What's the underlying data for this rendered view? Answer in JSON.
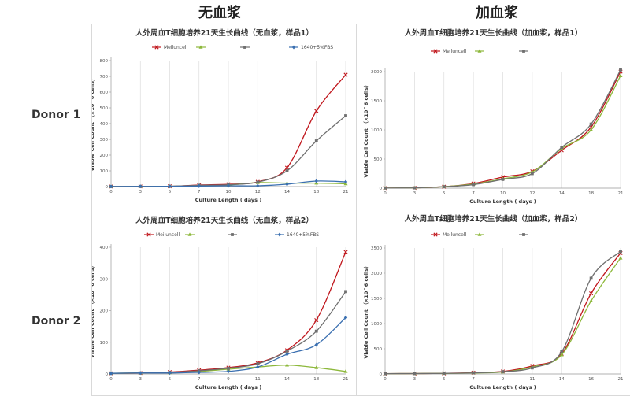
{
  "headers": {
    "col_left": "无血浆",
    "col_right": "加血浆",
    "row_top": "Donor 1",
    "row_bottom": "Donor 2"
  },
  "colors": {
    "Meiluncell": "#c0161c",
    "G": "#8db83b",
    "L": "#6f6f6f",
    "FBS": "#3a6fb0"
  },
  "chart_data": [
    {
      "type": "line",
      "title": "人外周血T细胞培养21天生长曲线（无血浆，样品1）",
      "xlabel": "Culture Length ( days )",
      "ylabel": "Viable Cell Count （×10^6 cells）",
      "x": [
        0,
        3,
        5,
        7,
        10,
        12,
        14,
        18,
        21
      ],
      "ylim": [
        0,
        800
      ],
      "yticks": [
        0,
        100,
        200,
        300,
        400,
        500,
        600,
        700,
        800
      ],
      "legend": "top",
      "grid": "vertical",
      "series": [
        {
          "name": "Meiluncell",
          "color": "#c0161c",
          "marker": "x",
          "values": [
            0.5,
            1,
            2,
            10,
            15,
            30,
            120,
            480,
            710
          ]
        },
        {
          "name": "",
          "color": "#8db83b",
          "marker": "triangle",
          "values": [
            0.5,
            1,
            2,
            6,
            10,
            25,
            22,
            22,
            18
          ]
        },
        {
          "name": "",
          "color": "#6f6f6f",
          "marker": "square",
          "values": [
            0.5,
            1,
            2,
            8,
            12,
            28,
            100,
            290,
            450
          ]
        },
        {
          "name": "1640+5%FBS",
          "color": "#3a6fb0",
          "marker": "diamond",
          "values": [
            0.5,
            1,
            1.5,
            3,
            5,
            5,
            15,
            35,
            30
          ]
        }
      ]
    },
    {
      "type": "line",
      "title": "人外周血T细胞培养21天生长曲线（加血浆，样品1）",
      "xlabel": "Culture Length ( days )",
      "ylabel": "Viable Cell Count （×10^6 cells）",
      "x": [
        0,
        3,
        5,
        7,
        10,
        12,
        14,
        18,
        21
      ],
      "ylim": [
        0,
        2000
      ],
      "yticks": [
        0,
        500,
        1000,
        1500,
        2000
      ],
      "legend": "top",
      "grid": "vertical",
      "series": [
        {
          "name": "Meiluncell",
          "color": "#c0161c",
          "marker": "x",
          "values": [
            2,
            5,
            25,
            80,
            190,
            290,
            650,
            1050,
            2000
          ]
        },
        {
          "name": "",
          "color": "#8db83b",
          "marker": "triangle",
          "values": [
            2,
            5,
            25,
            70,
            160,
            280,
            680,
            1000,
            1930
          ]
        },
        {
          "name": "",
          "color": "#6f6f6f",
          "marker": "square",
          "values": [
            2,
            5,
            25,
            60,
            150,
            250,
            700,
            1100,
            2030
          ]
        }
      ]
    },
    {
      "type": "line",
      "title": "人外周血T细胞培养21天生长曲线（无血浆，样品2）",
      "xlabel": "Culture Length ( days )",
      "ylabel": "Viable Cell Count （×10^6 cells）",
      "x": [
        0,
        3,
        5,
        7,
        9,
        11,
        14,
        18,
        21
      ],
      "ylim": [
        0,
        400
      ],
      "yticks": [
        0,
        100,
        200,
        300,
        400
      ],
      "legend": "top",
      "grid": "vertical",
      "series": [
        {
          "name": "Meiluncell",
          "color": "#c0161c",
          "marker": "x",
          "values": [
            2,
            3,
            6,
            12,
            20,
            35,
            75,
            170,
            385
          ]
        },
        {
          "name": "",
          "color": "#8db83b",
          "marker": "triangle",
          "values": [
            2,
            3,
            4,
            8,
            15,
            22,
            28,
            20,
            8
          ]
        },
        {
          "name": "",
          "color": "#6f6f6f",
          "marker": "square",
          "values": [
            2,
            3,
            5,
            10,
            18,
            32,
            72,
            135,
            260
          ]
        },
        {
          "name": "1640+5%FBS",
          "color": "#3a6fb0",
          "marker": "diamond",
          "values": [
            2,
            3,
            3,
            5,
            8,
            22,
            62,
            92,
            178
          ]
        }
      ]
    },
    {
      "type": "line",
      "title": "人外周血T细胞培养21天生长曲线（加血浆，样品2）",
      "xlabel": "Culture Length ( days )",
      "ylabel": "Viable Cell Count （×10^6 cells）",
      "x": [
        0,
        3,
        5,
        7,
        9,
        11,
        14,
        16,
        21
      ],
      "ylim": [
        0,
        2500
      ],
      "yticks": [
        0,
        500,
        1000,
        1500,
        2000,
        2500
      ],
      "legend": "top",
      "grid": "vertical",
      "series": [
        {
          "name": "Meiluncell",
          "color": "#c0161c",
          "marker": "x",
          "values": [
            5,
            8,
            12,
            25,
            50,
            160,
            400,
            1600,
            2400
          ]
        },
        {
          "name": "",
          "color": "#8db83b",
          "marker": "triangle",
          "values": [
            5,
            8,
            12,
            20,
            40,
            140,
            380,
            1450,
            2300
          ]
        },
        {
          "name": "",
          "color": "#6f6f6f",
          "marker": "square",
          "values": [
            5,
            8,
            12,
            22,
            45,
            120,
            440,
            1900,
            2430
          ]
        }
      ]
    }
  ]
}
